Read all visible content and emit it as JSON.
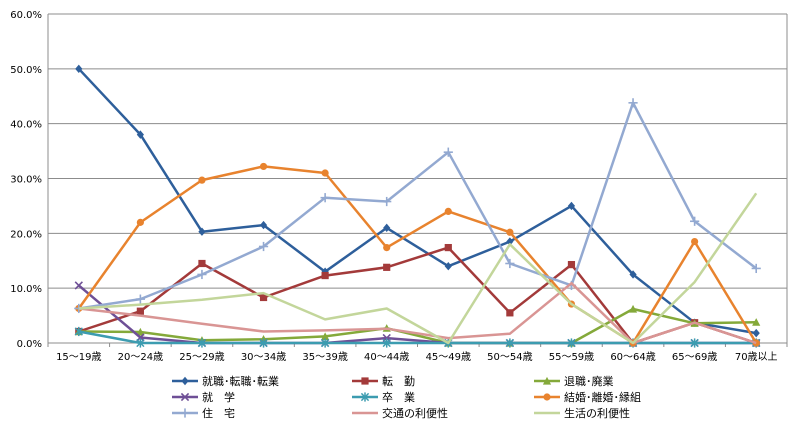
{
  "chart_data": {
    "type": "line",
    "categories": [
      "15～19歳",
      "20～24歳",
      "25～29歳",
      "30～34歳",
      "35～39歳",
      "40～44歳",
      "45～49歳",
      "50～54歳",
      "55～59歳",
      "60～64歳",
      "65～69歳",
      "70歳以上"
    ],
    "y_ticks": [
      "0.0%",
      "10.0%",
      "20.0%",
      "30.0%",
      "40.0%",
      "50.0%",
      "60.0%"
    ],
    "ylim": [
      0,
      60
    ],
    "grid": "horizontal",
    "legend_position": "bottom",
    "series": [
      {
        "name": "就職･転職･転業",
        "color": "#2e5f9b",
        "marker": "diamond",
        "values": [
          50.0,
          38.0,
          20.3,
          21.5,
          13.0,
          21.0,
          14.0,
          18.5,
          25.0,
          12.5,
          3.7,
          1.8
        ]
      },
      {
        "name": "転　勤",
        "color": "#a33a3a",
        "marker": "square",
        "values": [
          2.1,
          5.8,
          14.5,
          8.3,
          12.3,
          13.8,
          17.4,
          5.5,
          14.3,
          0.0,
          3.7,
          0.0
        ]
      },
      {
        "name": "退職･廃業",
        "color": "#84a93a",
        "marker": "triangle",
        "values": [
          2.1,
          2.0,
          0.5,
          0.7,
          1.2,
          2.7,
          0.0,
          0.0,
          0.0,
          6.2,
          3.6,
          3.8
        ]
      },
      {
        "name": "就　学",
        "color": "#6e4f96",
        "marker": "x",
        "values": [
          10.5,
          1.0,
          0.0,
          0.0,
          0.0,
          0.9,
          0.0,
          0.0,
          0.0,
          0.0,
          0.0,
          0.0
        ]
      },
      {
        "name": "卒　業",
        "color": "#3c9cb0",
        "marker": "asterisk",
        "values": [
          2.1,
          0.0,
          0.0,
          0.0,
          0.0,
          0.0,
          0.0,
          0.0,
          0.0,
          0.0,
          0.0,
          0.0
        ]
      },
      {
        "name": "結婚･離婚･縁組",
        "color": "#e8832e",
        "marker": "circle",
        "values": [
          6.3,
          22.0,
          29.7,
          32.2,
          31.0,
          17.4,
          24.0,
          20.2,
          7.1,
          0.0,
          18.5,
          0.0
        ]
      },
      {
        "name": "住　宅",
        "color": "#93a9d1",
        "marker": "plus",
        "values": [
          6.3,
          8.0,
          12.5,
          17.6,
          26.5,
          25.8,
          34.8,
          14.5,
          10.5,
          43.8,
          22.2,
          13.6
        ]
      },
      {
        "name": "交通の利便性",
        "color": "#d99594",
        "marker": "none",
        "values": [
          6.3,
          5.0,
          3.5,
          2.1,
          2.3,
          2.6,
          0.9,
          1.7,
          10.9,
          0.0,
          3.7,
          0.0
        ]
      },
      {
        "name": "生活の利便性",
        "color": "#c3d69b",
        "marker": "none",
        "values": [
          6.3,
          7.0,
          7.9,
          9.1,
          4.3,
          6.3,
          0.0,
          18.0,
          7.1,
          0.0,
          11.1,
          27.3
        ]
      }
    ]
  }
}
